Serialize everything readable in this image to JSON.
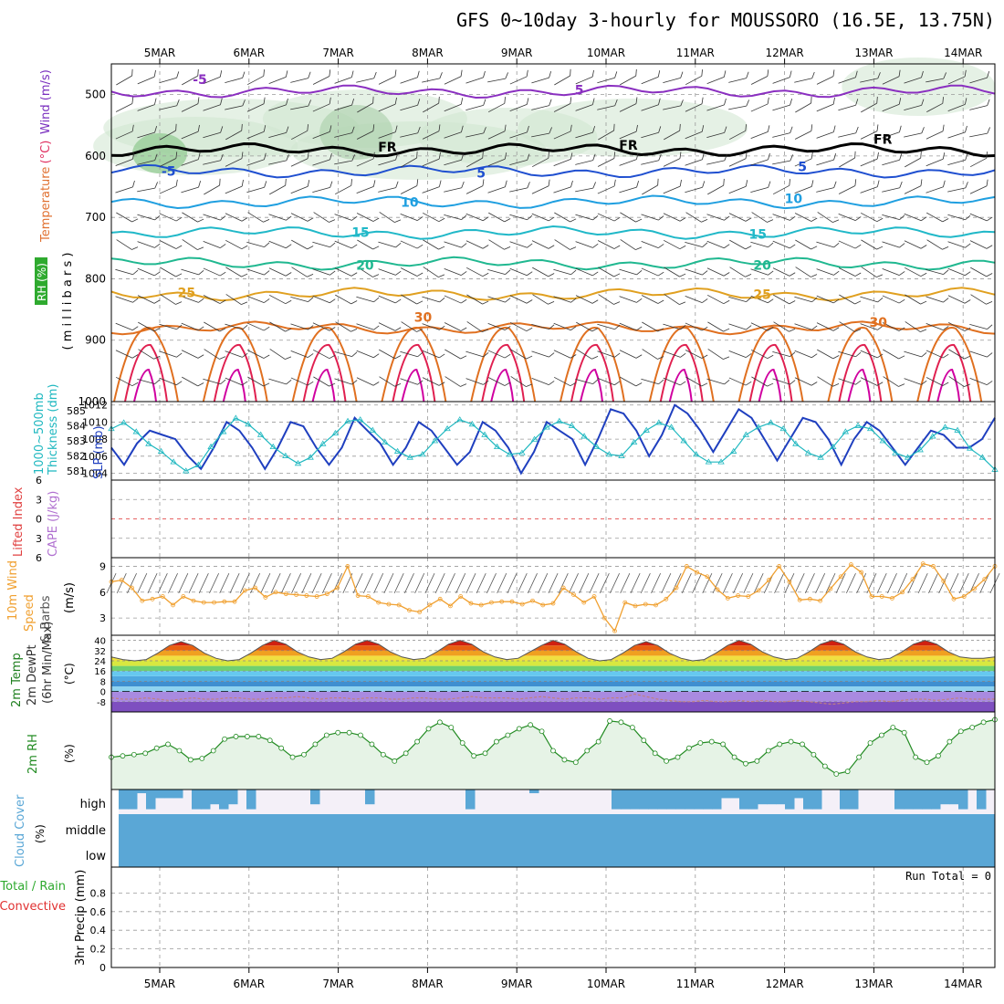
{
  "title": "GFS 0~10day 3-hourly for MOUSSORO (16.5E, 13.75N)",
  "dates": [
    "5MAR",
    "6MAR",
    "7MAR",
    "8MAR",
    "9MAR",
    "10MAR",
    "11MAR",
    "12MAR",
    "13MAR",
    "14MAR"
  ],
  "colors": {
    "rh": "#228b22",
    "slp": "#1f3fbf",
    "thickness": "#20b8c0",
    "wind10": "#f0a030",
    "cloud": "#5aa7d6",
    "temp_warm": "#e04020",
    "temp_cool": "#8060d0",
    "zero_line": "#e03030"
  },
  "chart_data": [
    {
      "type": "contour",
      "panel": "upper-air",
      "ylabel_parts": [
        {
          "text": "Temperature",
          "color": "#e07030"
        },
        {
          "text": "(°C)",
          "color": "#e03060"
        },
        {
          "text": "Wind (m/s)",
          "color": "#7a2fbf"
        }
      ],
      "rh_label": "RH (%)",
      "axis_label": "( m i l l i b a r s )",
      "ylim": [
        1000,
        450
      ],
      "yticks": [
        500,
        600,
        700,
        800,
        900,
        1000
      ],
      "isotherms": [
        {
          "value": -5,
          "label": "-5",
          "pressure": 495,
          "color": "#8a2fc0"
        },
        {
          "value": 0,
          "label": "FR",
          "pressure": 590,
          "color": "#000000"
        },
        {
          "value": 5,
          "label": "5",
          "pressure": 625,
          "color": "#1f4fd0"
        },
        {
          "value": 10,
          "label": "10",
          "pressure": 675,
          "color": "#1f9fe0"
        },
        {
          "value": 15,
          "label": "15",
          "pressure": 725,
          "color": "#20b8c8"
        },
        {
          "value": 20,
          "label": "20",
          "pressure": 775,
          "color": "#20b890"
        },
        {
          "value": 25,
          "label": "25",
          "pressure": 825,
          "color": "#e0a020"
        },
        {
          "value": 30,
          "label": "30",
          "pressure": 880,
          "color": "#e07020"
        }
      ],
      "labels": [
        {
          "text": "-5",
          "day": 0.45,
          "pressure": 483,
          "color": "#8a2fc0"
        },
        {
          "text": "5",
          "day": 4.7,
          "pressure": 500,
          "color": "#8a2fc0"
        },
        {
          "text": "FR",
          "day": 2.55,
          "pressure": 593,
          "color": "#000000"
        },
        {
          "text": "FR",
          "day": 5.25,
          "pressure": 590,
          "color": "#000000"
        },
        {
          "text": "FR",
          "day": 8.1,
          "pressure": 580,
          "color": "#000000"
        },
        {
          "text": "-5",
          "day": 0.1,
          "pressure": 632,
          "color": "#1f4fd0"
        },
        {
          "text": "5",
          "day": 3.6,
          "pressure": 635,
          "color": "#1f4fd0"
        },
        {
          "text": "5",
          "day": 7.2,
          "pressure": 625,
          "color": "#1f4fd0"
        },
        {
          "text": "10",
          "day": 2.8,
          "pressure": 683,
          "color": "#1f9fe0"
        },
        {
          "text": "10",
          "day": 7.1,
          "pressure": 677,
          "color": "#1f9fe0"
        },
        {
          "text": "15",
          "day": 2.25,
          "pressure": 732,
          "color": "#20b8c8"
        },
        {
          "text": "15",
          "day": 6.7,
          "pressure": 735,
          "color": "#20b8c8"
        },
        {
          "text": "20",
          "day": 2.3,
          "pressure": 785,
          "color": "#20b890"
        },
        {
          "text": "20",
          "day": 6.75,
          "pressure": 785,
          "color": "#20b890"
        },
        {
          "text": "25",
          "day": 0.3,
          "pressure": 830,
          "color": "#e0a020"
        },
        {
          "text": "25",
          "day": 6.75,
          "pressure": 833,
          "color": "#e0a020"
        },
        {
          "text": "30",
          "day": 2.95,
          "pressure": 870,
          "color": "#e07020"
        },
        {
          "text": "30",
          "day": 8.05,
          "pressure": 878,
          "color": "#e07020"
        }
      ]
    },
    {
      "type": "line",
      "panel": "slp-thickness",
      "ylabel_left": "Thickness (dm)",
      "ylabel_left_prefix": "1000~500mb",
      "ylabel_right": "SLP (mb)",
      "thickness_ylim": [
        580.4,
        585.6
      ],
      "thickness_yticks": [
        581,
        582,
        583,
        584,
        585
      ],
      "slp_ylim": [
        1003.2,
        1012.4
      ],
      "slp_yticks": [
        1004,
        1006,
        1008,
        1010,
        1012
      ],
      "series": [
        {
          "name": "SLP",
          "axis": "slp",
          "values": [
            1007,
            1005,
            1007.5,
            1009,
            1008.5,
            1008,
            1006,
            1004.5,
            1007,
            1010,
            1009,
            1007,
            1004.5,
            1007,
            1010,
            1009.5,
            1007,
            1005,
            1007,
            1010.5,
            1009,
            1007.5,
            1005,
            1007,
            1010,
            1009,
            1007,
            1005,
            1006.5,
            1010,
            1009,
            1007,
            1004,
            1006.5,
            1010,
            1009,
            1008,
            1005,
            1008,
            1011.5,
            1011,
            1009,
            1006,
            1008.5,
            1012,
            1011,
            1009,
            1006.5,
            1009,
            1011.5,
            1010.5,
            1008,
            1005.5,
            1008,
            1010.5,
            1010,
            1008,
            1005,
            1008,
            1010,
            1009,
            1007,
            1005,
            1007,
            1009,
            1008.5,
            1007,
            1007,
            1008,
            1010.5
          ]
        },
        {
          "name": "Thickness",
          "axis": "thk",
          "values": [
            583.8,
            584.2,
            583.6,
            582.8,
            582.3,
            581.6,
            581.0,
            581.4,
            582.6,
            583.6,
            584.5,
            584.1,
            583.4,
            582.6,
            582.0,
            581.5,
            581.9,
            582.8,
            583.5,
            584.3,
            584.4,
            583.7,
            582.9,
            582.3,
            581.9,
            582.1,
            583.0,
            583.8,
            584.4,
            584.1,
            583.4,
            582.6,
            582.1,
            582.2,
            583.1,
            583.9,
            584.3,
            584.0,
            583.3,
            582.6,
            582.1,
            582.0,
            582.9,
            583.7,
            584.2,
            583.9,
            583.0,
            582.1,
            581.6,
            581.6,
            582.3,
            583.4,
            583.9,
            584.2,
            583.8,
            582.8,
            582.2,
            581.9,
            582.6,
            583.6,
            584.0,
            583.8,
            583.0,
            582.2,
            581.9,
            582.4,
            583.3,
            583.9,
            583.7,
            582.5,
            581.9,
            581.1
          ]
        }
      ]
    },
    {
      "type": "line",
      "panel": "stability",
      "ylabel_left": "Lifted Index",
      "ylabel_right": "CAPE (J/kg)",
      "ylim": [
        6,
        -6
      ],
      "yticks": [
        -6,
        -3,
        0,
        3,
        6
      ]
    },
    {
      "type": "line",
      "panel": "wind10m",
      "ylabel_lines": [
        "10m Wind",
        "Speed",
        "& Barbs"
      ],
      "units": "(m/s)",
      "ylim": [
        1,
        10
      ],
      "yticks": [
        3,
        6,
        9
      ],
      "series": [
        {
          "name": "10m Wind Speed",
          "values": [
            7.2,
            7.4,
            6.5,
            5.0,
            5.2,
            5.5,
            4.5,
            5.5,
            5.0,
            4.8,
            4.8,
            4.9,
            4.9,
            6.2,
            6.5,
            5.4,
            6.0,
            5.8,
            5.7,
            5.6,
            5.5,
            5.8,
            6.5,
            9.0,
            5.6,
            5.5,
            4.8,
            4.6,
            4.5,
            3.9,
            3.7,
            4.5,
            5.2,
            4.4,
            5.5,
            4.7,
            4.5,
            4.8,
            4.9,
            4.9,
            4.6,
            5.0,
            4.5,
            4.7,
            6.5,
            5.7,
            4.8,
            5.5,
            3.0,
            1.5,
            4.8,
            4.4,
            4.6,
            4.5,
            5.2,
            6.5,
            9.0,
            8.3,
            7.8,
            6.3,
            5.3,
            5.6,
            5.5,
            6.2,
            7.4,
            9.0,
            7.2,
            5.1,
            5.2,
            5.0,
            6.4,
            7.8,
            9.2,
            8.3,
            5.5,
            5.5,
            5.3,
            6.0,
            7.5,
            9.3,
            9.0,
            7.3,
            5.2,
            5.5,
            6.4,
            7.5,
            9.0
          ]
        }
      ]
    },
    {
      "type": "area",
      "panel": "temperature",
      "ylabel_lines": [
        "2m Temp",
        "2m DewPt",
        "(6hr Min/Max)"
      ],
      "units": "(°C)",
      "ylim": [
        -16,
        44
      ],
      "yticks": [
        -8,
        0,
        8,
        16,
        24,
        32,
        40
      ],
      "series": [
        {
          "name": "2m Temp",
          "values": [
            27,
            25,
            24,
            25,
            30,
            36,
            39,
            36,
            30,
            26,
            24,
            25,
            30,
            36,
            40,
            37,
            31,
            27,
            25,
            26,
            31,
            37,
            40,
            37,
            31,
            27,
            25,
            26,
            31,
            37,
            40,
            37,
            31,
            27,
            25,
            26,
            31,
            36,
            40,
            37,
            31,
            26,
            24,
            25,
            30,
            36,
            39,
            36,
            30,
            26,
            24,
            25,
            30,
            36,
            40,
            37,
            31,
            27,
            25,
            26,
            31,
            37,
            40,
            37,
            31,
            27,
            25,
            26,
            31,
            37,
            40,
            37,
            31,
            27,
            26,
            26,
            27
          ]
        },
        {
          "name": "2m DewPt",
          "values": [
            -5,
            -6,
            -6,
            -5,
            -6,
            -7,
            -6,
            -5,
            -6,
            -6,
            -5,
            -5,
            -6,
            -6,
            -5,
            -5,
            -4,
            -5,
            -6,
            -5,
            -5,
            -6,
            -5,
            -5,
            -6,
            -6,
            -5,
            -5,
            -6,
            -6,
            -5,
            -4,
            -5,
            -5,
            -5,
            -6,
            -5,
            -4,
            -5,
            -6,
            -5,
            -5,
            -6,
            -5,
            -5,
            -2,
            -4,
            -6,
            -7,
            -8,
            -8,
            -7,
            -8,
            -8,
            -7,
            -8,
            -7,
            -8,
            -8,
            -7,
            -8,
            -9,
            -10,
            -9,
            -8,
            -8,
            -7,
            -8,
            -7,
            -6,
            -6,
            -7,
            -6,
            -5,
            -6,
            -6,
            -6
          ]
        }
      ]
    },
    {
      "type": "line",
      "panel": "rh2m",
      "ylabel_lines": [
        "2m RH"
      ],
      "units": "(%)",
      "series": [
        {
          "name": "2m RH",
          "values": [
            45,
            46,
            47,
            48,
            52,
            55,
            50,
            43,
            44,
            50,
            59,
            61,
            61,
            61,
            58,
            52,
            45,
            47,
            55,
            62,
            64,
            64,
            62,
            55,
            47,
            42,
            48,
            57,
            67,
            72,
            68,
            56,
            46,
            48,
            57,
            62,
            67,
            70,
            65,
            50,
            43,
            41,
            50,
            57,
            73,
            72,
            68,
            58,
            48,
            42,
            45,
            52,
            56,
            57,
            55,
            45,
            40,
            42,
            50,
            55,
            57,
            55,
            47,
            38,
            32,
            34,
            45,
            56,
            62,
            68,
            64,
            45,
            41,
            46,
            57,
            65,
            68,
            72,
            74
          ]
        }
      ]
    },
    {
      "type": "area",
      "panel": "cloud",
      "ylabel_lines": [
        "Cloud Cover",
        "(%)"
      ],
      "levels": [
        "high",
        "middle",
        "low"
      ],
      "high_values": [
        80,
        80,
        15,
        80,
        35,
        35,
        35,
        0,
        80,
        80,
        60,
        80,
        60,
        0,
        80,
        0,
        0,
        0,
        0,
        0,
        0,
        60,
        0,
        0,
        0,
        0,
        0,
        60,
        0,
        0,
        0,
        0,
        0,
        0,
        0,
        0,
        0,
        0,
        80,
        0,
        0,
        0,
        0,
        0,
        0,
        15,
        0,
        0,
        0,
        0,
        0,
        0,
        0,
        0,
        80,
        80,
        80,
        80,
        80,
        80,
        80,
        80,
        80,
        80,
        80,
        80,
        35,
        35,
        80,
        80,
        60,
        60,
        60,
        80,
        35,
        80,
        80,
        0,
        0,
        80,
        80,
        0,
        0,
        0,
        0,
        80,
        80,
        80,
        80,
        80,
        60,
        60,
        80,
        0,
        80,
        0
      ]
    },
    {
      "type": "bar",
      "panel": "precip",
      "ylabel_lines": [
        "Total / Rain",
        "Convective",
        "3hr Precip (mm)"
      ],
      "ylim": [
        0,
        1.0
      ],
      "yticks": [
        0,
        0.2,
        0.4,
        0.6,
        0.8
      ],
      "run_total_label": "Run Total = 0",
      "values": []
    }
  ]
}
